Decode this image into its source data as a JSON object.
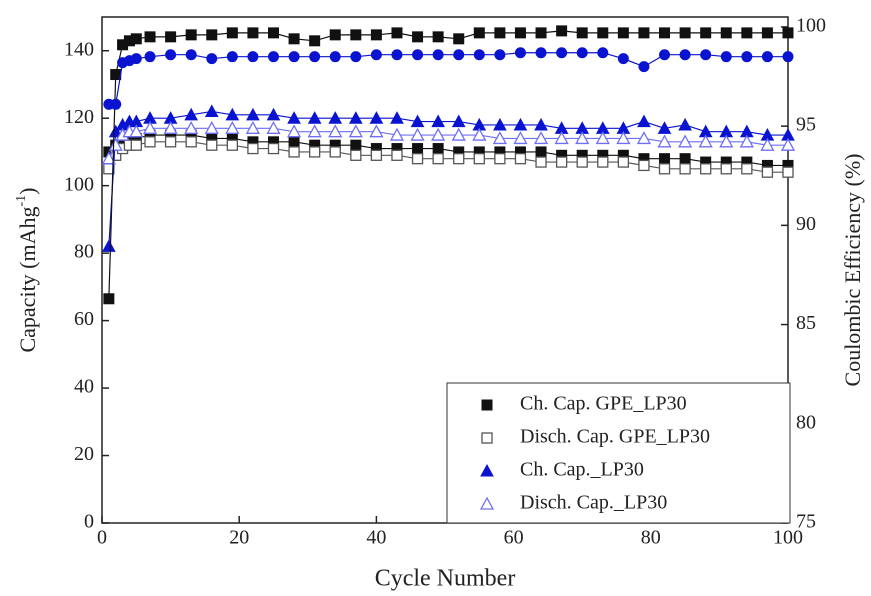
{
  "chart_data": {
    "type": "scatter",
    "x_label": "Cycle Number",
    "y_label": "Capacity (mAhg",
    "y_label_sup": "-1",
    "y_label_end": ")",
    "y2_label": "Coulombic Efficiency (%)",
    "x": [
      1,
      2,
      3,
      4,
      5,
      7,
      10,
      13,
      16,
      19,
      22,
      25,
      28,
      31,
      34,
      37,
      40,
      43,
      46,
      49,
      52,
      55,
      58,
      61,
      64,
      67,
      70,
      73,
      76,
      79,
      82,
      85,
      88,
      91,
      94,
      97,
      100
    ],
    "xlim": [
      0,
      100
    ],
    "xticks": [
      0,
      20,
      40,
      60,
      80,
      100
    ],
    "ylim": [
      0,
      150
    ],
    "yticks": [
      0,
      20,
      40,
      60,
      80,
      100,
      120,
      140
    ],
    "y2lim": [
      75,
      100.5
    ],
    "y2ticks": [
      75,
      80,
      85,
      90,
      95,
      100
    ],
    "legend": "lower right",
    "series": [
      {
        "name": "Ch. Cap. GPE_LP30",
        "color": "#111111",
        "marker": "square",
        "values": [
          110,
          112,
          113,
          114,
          114,
          115,
          115,
          115,
          114,
          114,
          113,
          113,
          113,
          112,
          112,
          112,
          111,
          111,
          111,
          111,
          110,
          110,
          110,
          110,
          110,
          109,
          109,
          109,
          109,
          108,
          108,
          108,
          107,
          107,
          107,
          106,
          106
        ]
      },
      {
        "name": "Disch. Cap. GPE_LP30",
        "color": "#555555",
        "marker": "square-open",
        "values": [
          105,
          109,
          111,
          112,
          112,
          113,
          113,
          113,
          112,
          112,
          111,
          111,
          110,
          110,
          110,
          109,
          109,
          109,
          108,
          108,
          108,
          108,
          108,
          108,
          107,
          107,
          107,
          107,
          107,
          106,
          105,
          105,
          105,
          105,
          105,
          104,
          104
        ]
      },
      {
        "name": "Ch. Cap._LP30",
        "color": "#0a14d0",
        "marker": "triangle",
        "values": [
          82,
          116,
          118,
          119,
          119,
          120,
          120,
          121,
          122,
          121,
          121,
          121,
          120,
          120,
          120,
          120,
          120,
          120,
          119,
          119,
          119,
          118,
          118,
          118,
          118,
          117,
          117,
          117,
          117,
          119,
          117,
          118,
          116,
          116,
          116,
          115,
          115
        ]
      },
      {
        "name": "Disch. Cap._LP30",
        "color": "#6f6ff5",
        "marker": "triangle-open",
        "values": [
          108,
          112,
          115,
          116,
          116,
          117,
          117,
          117,
          117,
          117,
          117,
          117,
          116,
          116,
          116,
          116,
          116,
          115,
          115,
          115,
          115,
          115,
          114,
          114,
          114,
          114,
          114,
          114,
          114,
          114,
          113,
          113,
          113,
          113,
          113,
          112,
          112
        ]
      },
      {
        "color": "#111111",
        "marker": "square",
        "axis": "y2",
        "values": [
          86.3,
          97.6,
          99.1,
          99.3,
          99.4,
          99.5,
          99.5,
          99.6,
          99.6,
          99.7,
          99.7,
          99.7,
          99.4,
          99.3,
          99.6,
          99.6,
          99.6,
          99.7,
          99.5,
          99.5,
          99.4,
          99.7,
          99.7,
          99.7,
          99.7,
          99.8,
          99.7,
          99.7,
          99.7,
          99.7,
          99.7,
          99.7,
          99.7,
          99.7,
          99.7,
          99.7,
          99.7
        ]
      },
      {
        "color": "#0a14d0",
        "marker": "circle",
        "axis": "y2",
        "values": [
          96.1,
          96.1,
          98.2,
          98.3,
          98.4,
          98.5,
          98.6,
          98.6,
          98.4,
          98.5,
          98.5,
          98.5,
          98.5,
          98.5,
          98.5,
          98.5,
          98.6,
          98.6,
          98.6,
          98.6,
          98.6,
          98.6,
          98.6,
          98.7,
          98.7,
          98.7,
          98.7,
          98.7,
          98.4,
          98.0,
          98.6,
          98.6,
          98.6,
          98.5,
          98.5,
          98.5,
          98.5
        ]
      }
    ]
  }
}
